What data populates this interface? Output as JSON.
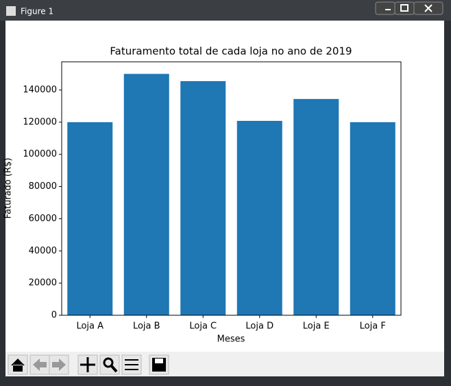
{
  "window": {
    "title": "Figure 1"
  },
  "chart_data": {
    "type": "bar",
    "title": "Faturamento total de cada loja no ano de 2019",
    "x_label": "Meses",
    "y_label": "Faturado (R$)",
    "categories": [
      "Loja A",
      "Loja B",
      "Loja C",
      "Loja D",
      "Loja E",
      "Loja F"
    ],
    "values": [
      120000,
      150000,
      145500,
      120800,
      134400,
      120000
    ],
    "color": "#1f77b4",
    "ylim": [
      0,
      157500
    ],
    "yticks": [
      0,
      20000,
      40000,
      60000,
      80000,
      100000,
      120000,
      140000
    ]
  }
}
